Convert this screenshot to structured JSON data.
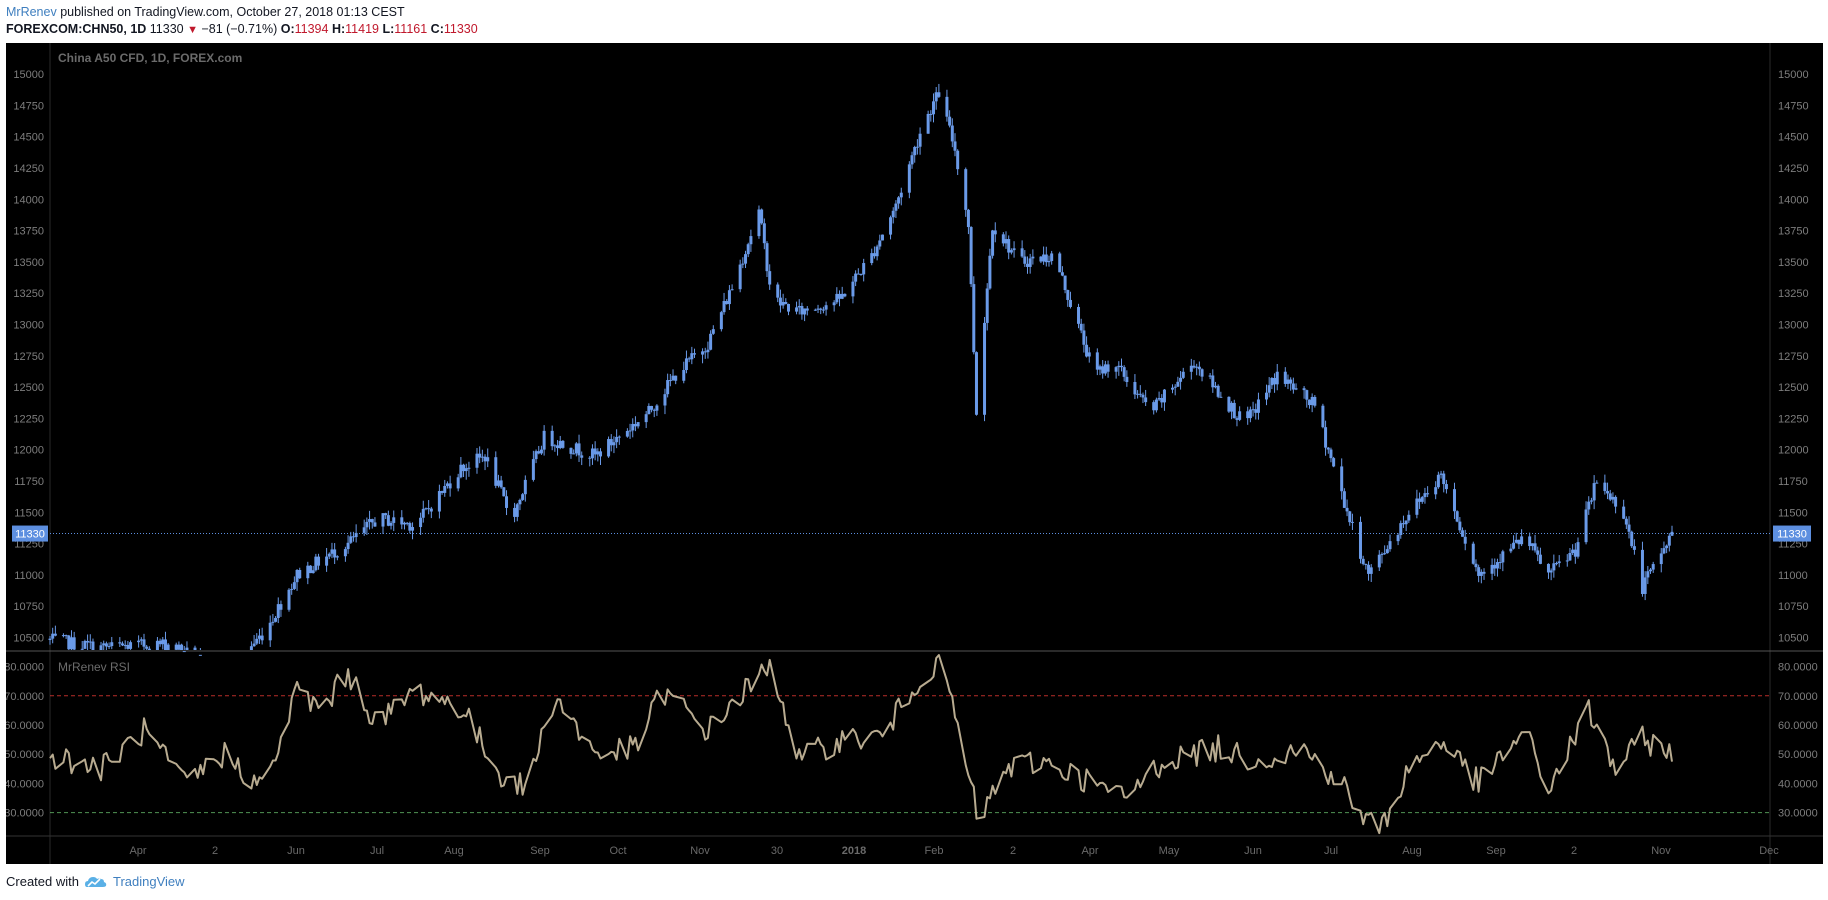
{
  "header": {
    "author": "MrRenev",
    "published_text": "published on TradingView.com, October 27, 2018 01:13 CEST"
  },
  "quote": {
    "symbol": "FOREXCOM:CHN50, 1D",
    "last": "11330",
    "arrow": "▼",
    "change": "−81 (−0.71%)",
    "o_label": "O:",
    "o": "11394",
    "h_label": "H:",
    "h": "11419",
    "l_label": "L:",
    "l": "11161",
    "c_label": "C:",
    "c": "11330"
  },
  "footer": {
    "created_with": "Created with",
    "brand": "TradingView"
  },
  "colors": {
    "background": "#000000",
    "candle": "#6a9ae8",
    "rsi_line": "#b8ab90",
    "rsi_upper": "#e53935",
    "rsi_lower": "#66bb6a",
    "price_line": "#5d8fe0",
    "axis_text": "#7d7d7d"
  },
  "chart_data": [
    {
      "type": "candlestick",
      "title": "China A50 CFD, 1D, FOREX.com",
      "ylim": [
        10400,
        15200
      ],
      "y_ticks": [
        10500,
        10750,
        11000,
        11250,
        11500,
        11750,
        12000,
        12250,
        12500,
        12750,
        13000,
        13250,
        13500,
        13750,
        14000,
        14250,
        14500,
        14750,
        15000
      ],
      "last_price": 11330,
      "last_price_label": "11330",
      "x_ticks": [
        "Apr",
        "2",
        "Jun",
        "Jul",
        "Aug",
        "Sep",
        "Oct",
        "Nov",
        "30",
        "2018",
        "Feb",
        "2",
        "Apr",
        "May",
        "Jun",
        "Jul",
        "Aug",
        "Sep",
        "2",
        "Nov",
        "Dec"
      ],
      "x_tick_bold": "2018",
      "trajectory": {
        "x": [
          "2017-03-01",
          "2017-03-20",
          "2017-04-15",
          "2017-05-05",
          "2017-05-20",
          "2017-06-01",
          "2017-06-20",
          "2017-07-01",
          "2017-07-15",
          "2017-08-01",
          "2017-08-10",
          "2017-08-20",
          "2017-09-01",
          "2017-09-20",
          "2017-10-10",
          "2017-10-20",
          "2017-11-01",
          "2017-11-10",
          "2017-11-20",
          "2017-11-25",
          "2017-12-05",
          "2017-12-20",
          "2018-01-01",
          "2018-01-10",
          "2018-01-20",
          "2018-01-26",
          "2018-02-01",
          "2018-02-06",
          "2018-02-09",
          "2018-02-15",
          "2018-02-25",
          "2018-03-10",
          "2018-03-25",
          "2018-04-01",
          "2018-04-15",
          "2018-05-01",
          "2018-05-20",
          "2018-06-01",
          "2018-06-15",
          "2018-06-30",
          "2018-07-05",
          "2018-07-20",
          "2018-08-01",
          "2018-08-15",
          "2018-09-01",
          "2018-09-10",
          "2018-09-20",
          "2018-09-28",
          "2018-10-08",
          "2018-10-15",
          "2018-10-26"
        ],
        "y": [
          10480,
          10420,
          10450,
          10200,
          10550,
          11000,
          11250,
          11450,
          11400,
          11850,
          11950,
          11450,
          12100,
          11950,
          12300,
          12600,
          12850,
          13300,
          13900,
          13200,
          13100,
          13200,
          13550,
          13950,
          14600,
          14850,
          14400,
          13800,
          12300,
          13800,
          13500,
          13550,
          12600,
          12700,
          12300,
          12700,
          12200,
          12600,
          12350,
          11300,
          11000,
          11500,
          11800,
          11000,
          11300,
          11000,
          11200,
          11750,
          11500,
          10900,
          11330
        ]
      }
    },
    {
      "type": "line",
      "title": "MrRenev RSI",
      "ylim": [
        22,
        85
      ],
      "y_ticks": [
        30,
        40,
        50,
        60,
        70,
        80
      ],
      "y_tick_labels": [
        "30.0000",
        "40.0000",
        "50.0000",
        "60.0000",
        "70.0000",
        "80.0000"
      ],
      "upper_band": 70,
      "lower_band": 30,
      "trajectory": {
        "x": [
          "2017-03-01",
          "2017-03-20",
          "2017-04-05",
          "2017-04-20",
          "2017-05-05",
          "2017-05-20",
          "2017-06-01",
          "2017-06-10",
          "2017-06-20",
          "2017-07-01",
          "2017-07-15",
          "2017-08-01",
          "2017-08-15",
          "2017-08-25",
          "2017-09-05",
          "2017-09-20",
          "2017-10-05",
          "2017-10-15",
          "2017-11-01",
          "2017-11-15",
          "2017-11-25",
          "2017-12-05",
          "2017-12-20",
          "2018-01-05",
          "2018-01-20",
          "2018-01-28",
          "2018-02-05",
          "2018-02-10",
          "2018-02-20",
          "2018-03-05",
          "2018-03-20",
          "2018-04-05",
          "2018-04-20",
          "2018-05-10",
          "2018-05-25",
          "2018-06-10",
          "2018-06-25",
          "2018-07-03",
          "2018-07-10",
          "2018-07-20",
          "2018-08-01",
          "2018-08-15",
          "2018-09-01",
          "2018-09-10",
          "2018-09-25",
          "2018-10-05",
          "2018-10-15",
          "2018-10-26"
        ],
        "y": [
          50,
          45,
          58,
          40,
          50,
          38,
          72,
          65,
          78,
          60,
          72,
          66,
          44,
          38,
          70,
          50,
          52,
          72,
          58,
          72,
          80,
          48,
          55,
          56,
          78,
          80,
          46,
          27,
          45,
          48,
          42,
          35,
          48,
          52,
          48,
          52,
          40,
          28,
          25,
          45,
          55,
          40,
          58,
          38,
          65,
          45,
          55,
          51
        ]
      }
    }
  ]
}
